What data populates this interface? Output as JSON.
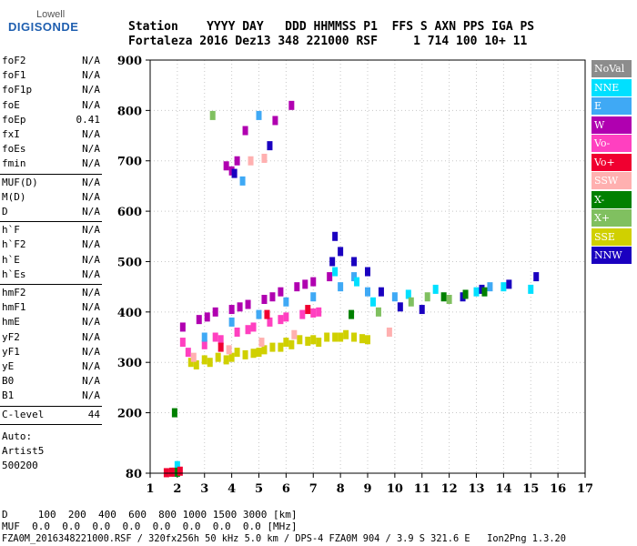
{
  "logo": {
    "top": "Lowell",
    "main": "DIGISONDE"
  },
  "header": {
    "line1": "Station    YYYY DAY   DDD HHMMSS P1  FFS S AXN PPS IGA PS",
    "line2": "Fortaleza 2016 Dez13 348 221000 RSF     1 714 100 10+ 11"
  },
  "params": {
    "group1": [
      {
        "label": "foF2",
        "value": "N/A"
      },
      {
        "label": "foF1",
        "value": "N/A"
      },
      {
        "label": "foF1p",
        "value": "N/A"
      },
      {
        "label": "foE",
        "value": "N/A"
      },
      {
        "label": "foEp",
        "value": "0.41"
      },
      {
        "label": "fxI",
        "value": "N/A"
      },
      {
        "label": "foEs",
        "value": "N/A"
      },
      {
        "label": "fmin",
        "value": "N/A"
      }
    ],
    "group2": [
      {
        "label": "MUF(D)",
        "value": "N/A"
      },
      {
        "label": "M(D)",
        "value": "N/A"
      },
      {
        "label": "D",
        "value": "N/A"
      }
    ],
    "group3": [
      {
        "label": "h`F",
        "value": "N/A"
      },
      {
        "label": "h`F2",
        "value": "N/A"
      },
      {
        "label": "h`E",
        "value": "N/A"
      },
      {
        "label": "h`Es",
        "value": "N/A"
      }
    ],
    "group4": [
      {
        "label": "hmF2",
        "value": "N/A"
      },
      {
        "label": "hmF1",
        "value": "N/A"
      },
      {
        "label": "hmE",
        "value": "N/A"
      },
      {
        "label": "yF2",
        "value": "N/A"
      },
      {
        "label": "yF1",
        "value": "N/A"
      },
      {
        "label": "yE",
        "value": "N/A"
      },
      {
        "label": "B0",
        "value": "N/A"
      },
      {
        "label": "B1",
        "value": "N/A"
      }
    ],
    "clevel": {
      "label": "C-level",
      "value": "44"
    },
    "auto": [
      "Auto:",
      "Artist5",
      "500200"
    ]
  },
  "bottom": {
    "d_line": "D     100  200  400  600  800 1000 1500 3000 [km]",
    "muf_line": "MUF  0.0  0.0  0.0  0.0  0.0  0.0  0.0  0.0 [MHz]",
    "file_line": "FZA0M_2016348221000.RSF / 320fx256h 50 kHz 5.0 km / DPS-4 FZA0M 904 / 3.9 S 321.6 E   Ion2Png 1.3.20"
  },
  "legend": [
    {
      "label": "NoVal",
      "color": "#8c8c8c"
    },
    {
      "label": "NNE",
      "color": "#00e0ff"
    },
    {
      "label": "E",
      "color": "#3fa9f5"
    },
    {
      "label": "W",
      "color": "#b000b0"
    },
    {
      "label": "Vo-",
      "color": "#ff40c0"
    },
    {
      "label": "Vo+",
      "color": "#f00030"
    },
    {
      "label": "SSW",
      "color": "#ffb0b0"
    },
    {
      "label": "X-",
      "color": "#008000"
    },
    {
      "label": "X+",
      "color": "#80c060"
    },
    {
      "label": "SSE",
      "color": "#d0d000"
    },
    {
      "label": "NNW",
      "color": "#1a00c0"
    }
  ],
  "chart_data": {
    "type": "scatter",
    "xlim": [
      1,
      17
    ],
    "ylim": [
      80,
      900
    ],
    "x_ticks": [
      "1",
      "2",
      "3",
      "4",
      "5",
      "6",
      "7",
      "8",
      "9",
      "10",
      "11",
      "12",
      "13",
      "14",
      "15",
      "16",
      "17"
    ],
    "y_ticks": [
      "80",
      "200",
      "300",
      "400",
      "500",
      "600",
      "700",
      "800",
      "900"
    ],
    "grid": true,
    "legend_position": "right",
    "series": [
      {
        "color": "#d0d000",
        "points": [
          [
            2.5,
            300
          ],
          [
            3,
            305
          ],
          [
            3.5,
            310
          ],
          [
            4,
            310
          ],
          [
            4.5,
            315
          ],
          [
            5,
            320
          ],
          [
            5.5,
            330
          ],
          [
            6,
            340
          ],
          [
            6.5,
            345
          ],
          [
            7,
            345
          ],
          [
            7.5,
            350
          ],
          [
            8,
            350
          ],
          [
            8.5,
            350
          ],
          [
            9,
            345
          ],
          [
            3.2,
            300
          ],
          [
            4.2,
            320
          ],
          [
            5.2,
            325
          ],
          [
            6.2,
            335
          ],
          [
            7.2,
            340
          ],
          [
            8.2,
            355
          ],
          [
            2.7,
            295
          ],
          [
            3.8,
            305
          ],
          [
            4.8,
            318
          ],
          [
            5.8,
            330
          ],
          [
            6.8,
            342
          ],
          [
            7.8,
            350
          ],
          [
            8.8,
            347
          ]
        ]
      },
      {
        "color": "#ff40c0",
        "points": [
          [
            2.4,
            320
          ],
          [
            3,
            335
          ],
          [
            3.6,
            345
          ],
          [
            4.2,
            360
          ],
          [
            4.8,
            370
          ],
          [
            5.4,
            380
          ],
          [
            6,
            390
          ],
          [
            6.6,
            395
          ],
          [
            7.2,
            400
          ],
          [
            2.2,
            340
          ],
          [
            3.4,
            350
          ],
          [
            4.6,
            365
          ],
          [
            5.8,
            385
          ],
          [
            7,
            398
          ]
        ]
      },
      {
        "color": "#b000b0",
        "points": [
          [
            2.2,
            370
          ],
          [
            2.8,
            385
          ],
          [
            3.4,
            400
          ],
          [
            4,
            405
          ],
          [
            4.6,
            415
          ],
          [
            5.2,
            425
          ],
          [
            5.8,
            440
          ],
          [
            6.4,
            450
          ],
          [
            7,
            460
          ],
          [
            7.6,
            470
          ],
          [
            3.1,
            390
          ],
          [
            4.3,
            410
          ],
          [
            5.5,
            430
          ],
          [
            6.7,
            455
          ],
          [
            4,
            680
          ],
          [
            4.2,
            700
          ],
          [
            4.5,
            760
          ],
          [
            5.6,
            780
          ],
          [
            6.2,
            810
          ],
          [
            3.8,
            690
          ]
        ]
      },
      {
        "color": "#3fa9f5",
        "points": [
          [
            3,
            350
          ],
          [
            4,
            380
          ],
          [
            5,
            395
          ],
          [
            6,
            420
          ],
          [
            7,
            430
          ],
          [
            8,
            450
          ],
          [
            8.5,
            470
          ],
          [
            9,
            440
          ],
          [
            4.4,
            660
          ],
          [
            5,
            790
          ],
          [
            10,
            430
          ],
          [
            13.5,
            450
          ]
        ]
      },
      {
        "color": "#00e0ff",
        "points": [
          [
            7.8,
            480
          ],
          [
            8.6,
            460
          ],
          [
            9.2,
            420
          ],
          [
            10.5,
            435
          ],
          [
            11.5,
            445
          ],
          [
            13,
            440
          ],
          [
            14,
            450
          ],
          [
            15,
            445
          ],
          [
            2,
            95
          ],
          [
            1.9,
            82
          ]
        ]
      },
      {
        "color": "#1a00c0",
        "points": [
          [
            7.7,
            500
          ],
          [
            8,
            520
          ],
          [
            8.5,
            500
          ],
          [
            9,
            480
          ],
          [
            9.5,
            440
          ],
          [
            10.2,
            410
          ],
          [
            11,
            405
          ],
          [
            12.5,
            430
          ],
          [
            13.2,
            445
          ],
          [
            14.2,
            455
          ],
          [
            15.2,
            470
          ],
          [
            4.1,
            675
          ],
          [
            5.4,
            730
          ],
          [
            7.8,
            550
          ]
        ]
      },
      {
        "color": "#008000",
        "points": [
          [
            11.8,
            430
          ],
          [
            12.6,
            435
          ],
          [
            13.3,
            440
          ],
          [
            8.4,
            395
          ],
          [
            1.9,
            200
          ],
          [
            2,
            82
          ]
        ]
      },
      {
        "color": "#80c060",
        "points": [
          [
            10.6,
            420
          ],
          [
            11.2,
            430
          ],
          [
            12,
            425
          ],
          [
            3.3,
            790
          ],
          [
            9.4,
            400
          ]
        ]
      },
      {
        "color": "#f00030",
        "points": [
          [
            1.6,
            81
          ],
          [
            1.8,
            82
          ],
          [
            2.1,
            84
          ],
          [
            5.3,
            395
          ],
          [
            6.8,
            405
          ],
          [
            3.6,
            330
          ]
        ]
      },
      {
        "color": "#ffb0b0",
        "points": [
          [
            2.6,
            310
          ],
          [
            3.9,
            325
          ],
          [
            5.1,
            340
          ],
          [
            6.3,
            355
          ],
          [
            4.7,
            700
          ],
          [
            5.2,
            705
          ],
          [
            9.8,
            360
          ]
        ]
      }
    ]
  }
}
